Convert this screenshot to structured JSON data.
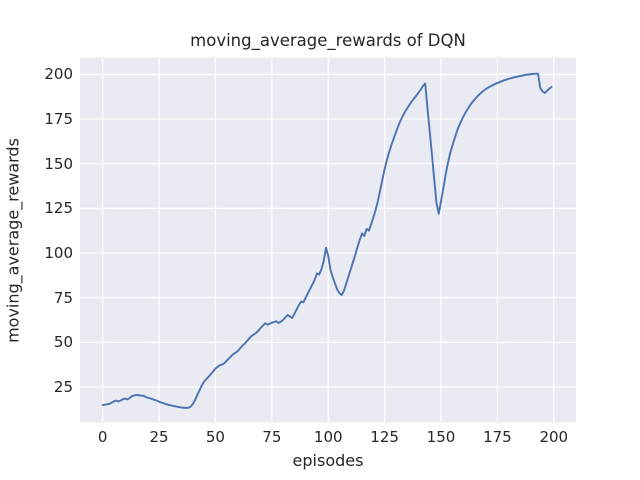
{
  "figure": {
    "title": "moving_average_rewards of DQN",
    "xlabel": "episodes",
    "ylabel": "moving_average_rewards"
  },
  "colors": {
    "line": "#4c72b0",
    "axes_background": "#eaeaf2",
    "grid": "#ffffff",
    "text": "#262626",
    "figure_background": "#ffffff"
  },
  "chart_data": {
    "type": "line",
    "title": "moving_average_rewards of DQN",
    "xlabel": "episodes",
    "ylabel": "moving_average_rewards",
    "x_ticks": [
      0,
      25,
      50,
      75,
      100,
      125,
      150,
      175,
      200
    ],
    "y_ticks": [
      25,
      50,
      75,
      100,
      125,
      150,
      175,
      200
    ],
    "xlim": [
      -10.05,
      209.85
    ],
    "ylim": [
      5.2,
      209.4
    ],
    "grid": true,
    "legend_visible": false,
    "series": [
      {
        "name": "moving_average_rewards",
        "x_start": 0,
        "x_step": 1,
        "y": [
          15.0,
          15.1,
          15.3,
          15.6,
          16.2,
          17.0,
          17.4,
          16.9,
          17.5,
          18.2,
          18.6,
          18.0,
          18.9,
          19.8,
          20.3,
          20.6,
          20.4,
          20.2,
          20.1,
          19.5,
          19.0,
          18.7,
          18.2,
          17.8,
          17.4,
          16.8,
          16.3,
          15.9,
          15.4,
          15.1,
          14.8,
          14.5,
          14.2,
          14.0,
          13.7,
          13.5,
          13.4,
          13.3,
          13.4,
          14.0,
          15.5,
          17.8,
          20.7,
          23.3,
          26.0,
          28.0,
          29.5,
          30.8,
          32.3,
          33.8,
          35.3,
          36.4,
          37.2,
          37.6,
          38.4,
          39.8,
          41.0,
          42.3,
          43.5,
          44.3,
          45.2,
          46.8,
          48.2,
          49.3,
          50.8,
          52.2,
          53.6,
          54.4,
          55.2,
          56.6,
          58.0,
          59.3,
          60.7,
          59.9,
          60.4,
          61.0,
          61.4,
          61.8,
          60.9,
          61.6,
          62.6,
          64.0,
          65.4,
          64.5,
          63.6,
          66.0,
          68.4,
          70.9,
          72.9,
          72.4,
          75.0,
          77.5,
          80.0,
          82.5,
          85.0,
          88.6,
          88.0,
          91.0,
          95.5,
          103.0,
          98.5,
          90.5,
          86.5,
          83.0,
          79.5,
          77.5,
          76.5,
          79.0,
          83.0,
          87.0,
          91.0,
          95.0,
          99.0,
          103.5,
          107.5,
          111.0,
          109.5,
          113.5,
          112.5,
          116.0,
          120.0,
          124.0,
          129.0,
          135.0,
          141.0,
          147.0,
          152.0,
          156.5,
          160.5,
          164.0,
          167.5,
          171.0,
          174.0,
          176.5,
          179.0,
          181.0,
          183.0,
          184.8,
          186.5,
          188.0,
          189.8,
          191.5,
          193.5,
          195.0,
          181.0,
          168.0,
          155.0,
          141.0,
          128.0,
          122.0,
          129.0,
          136.0,
          143.5,
          150.0,
          155.5,
          160.0,
          164.0,
          168.0,
          171.2,
          174.0,
          176.6,
          179.0,
          181.0,
          182.9,
          184.6,
          186.1,
          187.5,
          188.8,
          190.0,
          191.0,
          191.9,
          192.7,
          193.4,
          194.0,
          194.6,
          195.2,
          195.7,
          196.2,
          196.7,
          197.1,
          197.5,
          197.9,
          198.2,
          198.5,
          198.8,
          199.1,
          199.3,
          199.6,
          199.8,
          200.0,
          200.2,
          200.3,
          200.4,
          200.4,
          192.5,
          190.5,
          189.6,
          190.8,
          192.0,
          193.0
        ]
      }
    ]
  }
}
